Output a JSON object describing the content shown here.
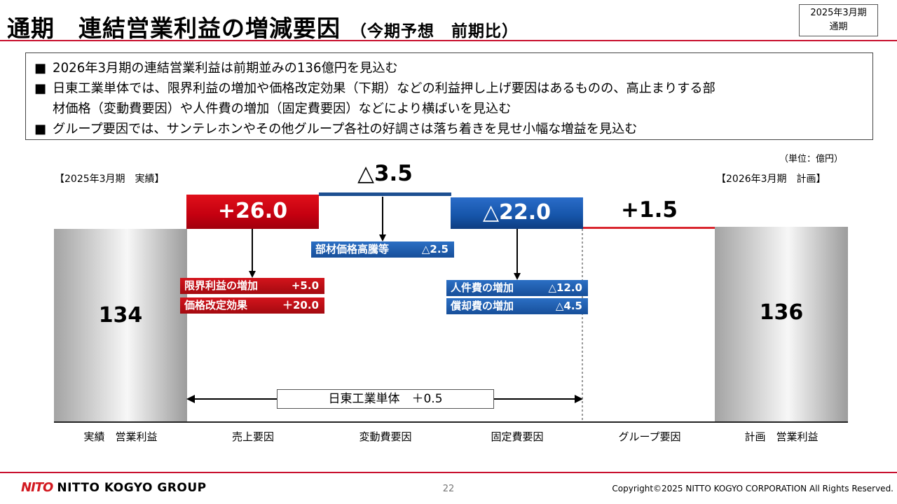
{
  "header": {
    "title": "通期　連結営業利益の増減要因",
    "subtitle": "（今期予想　前期比）",
    "period_line1": "2025年3月期",
    "period_line2": "通期"
  },
  "summary": {
    "bullet": "■",
    "line1": "2026年3月期の連結営業利益は前期並みの136億円を見込む",
    "line2a": "日東工業単体では、限界利益の増加や価格改定効果（下期）などの利益押し上げ要因はあるものの、高止まりする部",
    "line2b": "材価格（変動費要因）や人件費の増加（固定費要因）などにより横ばいを見込む",
    "line3": "グループ要因では、サンテレホンやその他グループ各社の好調さは落ち着きを見せ小幅な増益を見込む"
  },
  "chart_data": {
    "type": "bar",
    "subtype": "waterfall",
    "unit": "（単位：億円）",
    "period_actual": "【2025年3月期　実績】",
    "period_plan": "【2026年3月期　計画】",
    "categories": [
      "実績　営業利益",
      "売上要因",
      "変動費要因",
      "固定費要因",
      "グループ要因",
      "計画　営業利益"
    ],
    "values": [
      134,
      26.0,
      -3.5,
      -22.0,
      1.5,
      136
    ],
    "value_labels": [
      "134",
      "+26.0",
      "△3.5",
      "△22.0",
      "+1.5",
      "136"
    ],
    "colors": {
      "total": "#b0b0b0",
      "increase": "#c8101a",
      "decrease": "#1a5aa8",
      "group_increase": "#d9262e"
    },
    "breakdown": {
      "sales": [
        {
          "label": "限界利益の増加",
          "value": "+5.0"
        },
        {
          "label": "価格改定効果",
          "value": "＋20.0"
        }
      ],
      "variable": [
        {
          "label": "部材価格高騰等",
          "value": "△2.5"
        }
      ],
      "fixed": [
        {
          "label": "人件費の増加",
          "value": "△12.0"
        },
        {
          "label": "償却費の増加",
          "value": "△4.5"
        }
      ]
    },
    "span_annotation": "日東工業単体　＋0.5"
  },
  "footer": {
    "logo_mark": "NITO",
    "logo_text": "NITTO KOGYO GROUP",
    "page": "22",
    "copyright": "Copyright©2025 NITTO KOGYO CORPORATION All Rights Reserved."
  }
}
